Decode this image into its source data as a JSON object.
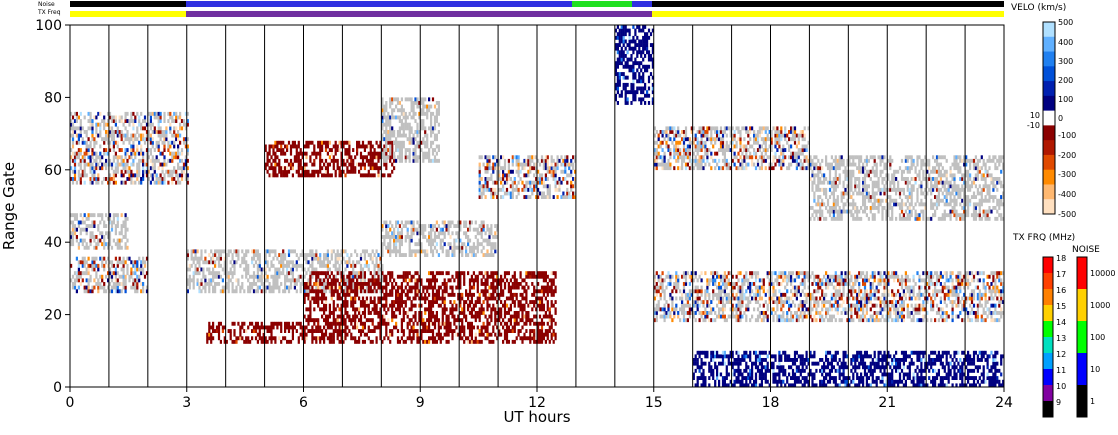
{
  "chart_data": {
    "type": "heatmap",
    "xlabel": "UT hours",
    "ylabel": "Range Gate",
    "xlim": [
      0,
      24
    ],
    "ylim": [
      0,
      100
    ],
    "x_ticks": [
      "0",
      "3",
      "6",
      "9",
      "12",
      "15",
      "18",
      "21",
      "24"
    ],
    "y_ticks": [
      "0",
      "20",
      "40",
      "60",
      "80",
      "100"
    ],
    "status_bars": {
      "noise_label": "Noise",
      "txfreq_label": "TX Freq"
    },
    "velocity_colorbar": {
      "title": "VELO (km/s)",
      "ticks": [
        "500",
        "400",
        "300",
        "200",
        "100",
        "10",
        "0",
        "-10",
        "-100",
        "-200",
        "-300",
        "-400",
        "-500"
      ],
      "colors": [
        "#ffe0c0",
        "#ffb870",
        "#ff8a00",
        "#e04a00",
        "#b01800",
        "#8b0000",
        "#ffffff",
        "#000080",
        "#0020b0",
        "#0050d8",
        "#2080f0",
        "#60b0ff",
        "#b0e0ff"
      ]
    },
    "txfreq_colorbar": {
      "title": "TX FRQ (MHz)",
      "ticks": [
        "18",
        "17",
        "16",
        "15",
        "14",
        "13",
        "12",
        "11",
        "10",
        "9"
      ],
      "colors": [
        "#ff0000",
        "#ff4000",
        "#ff8000",
        "#ffd000",
        "#00ff00",
        "#00e0c0",
        "#00a0ff",
        "#0000ff",
        "#8000a0",
        "#000000"
      ]
    },
    "noise_colorbar": {
      "title": "NOISE",
      "ticks": [
        "10000",
        "1000",
        "100",
        "10",
        "1"
      ],
      "colors": [
        "#ff0000",
        "#ffd000",
        "#00ff00",
        "#0000ff",
        "#000000"
      ]
    },
    "ground_scatter_color": "#c0c0c0",
    "echo_regions": [
      {
        "t0": 0.0,
        "t1": 3.0,
        "g0": 56,
        "g1": 76,
        "kind": "mixed"
      },
      {
        "t0": 0.0,
        "t1": 1.5,
        "g0": 38,
        "g1": 48,
        "kind": "ground"
      },
      {
        "t0": 0.0,
        "t1": 2.0,
        "g0": 26,
        "g1": 36,
        "kind": "mixed"
      },
      {
        "t0": 3.0,
        "t1": 8.0,
        "g0": 26,
        "g1": 38,
        "kind": "ground"
      },
      {
        "t0": 5.0,
        "t1": 8.3,
        "g0": 58,
        "g1": 68,
        "kind": "negative"
      },
      {
        "t0": 8.0,
        "t1": 9.5,
        "g0": 62,
        "g1": 80,
        "kind": "ground"
      },
      {
        "t0": 3.5,
        "t1": 6.0,
        "g0": 12,
        "g1": 18,
        "kind": "negative"
      },
      {
        "t0": 6.0,
        "t1": 12.5,
        "g0": 12,
        "g1": 32,
        "kind": "negative"
      },
      {
        "t0": 8.0,
        "t1": 11.0,
        "g0": 36,
        "g1": 46,
        "kind": "ground"
      },
      {
        "t0": 10.5,
        "t1": 13.0,
        "g0": 52,
        "g1": 64,
        "kind": "mixed"
      },
      {
        "t0": 14.0,
        "t1": 15.0,
        "g0": 78,
        "g1": 100,
        "kind": "positive"
      },
      {
        "t0": 15.0,
        "t1": 19.0,
        "g0": 60,
        "g1": 72,
        "kind": "mixed"
      },
      {
        "t0": 19.0,
        "t1": 24.0,
        "g0": 46,
        "g1": 64,
        "kind": "ground"
      },
      {
        "t0": 15.0,
        "t1": 24.0,
        "g0": 18,
        "g1": 32,
        "kind": "mixed"
      },
      {
        "t0": 16.0,
        "t1": 24.0,
        "g0": 0,
        "g1": 10,
        "kind": "positive"
      }
    ]
  }
}
